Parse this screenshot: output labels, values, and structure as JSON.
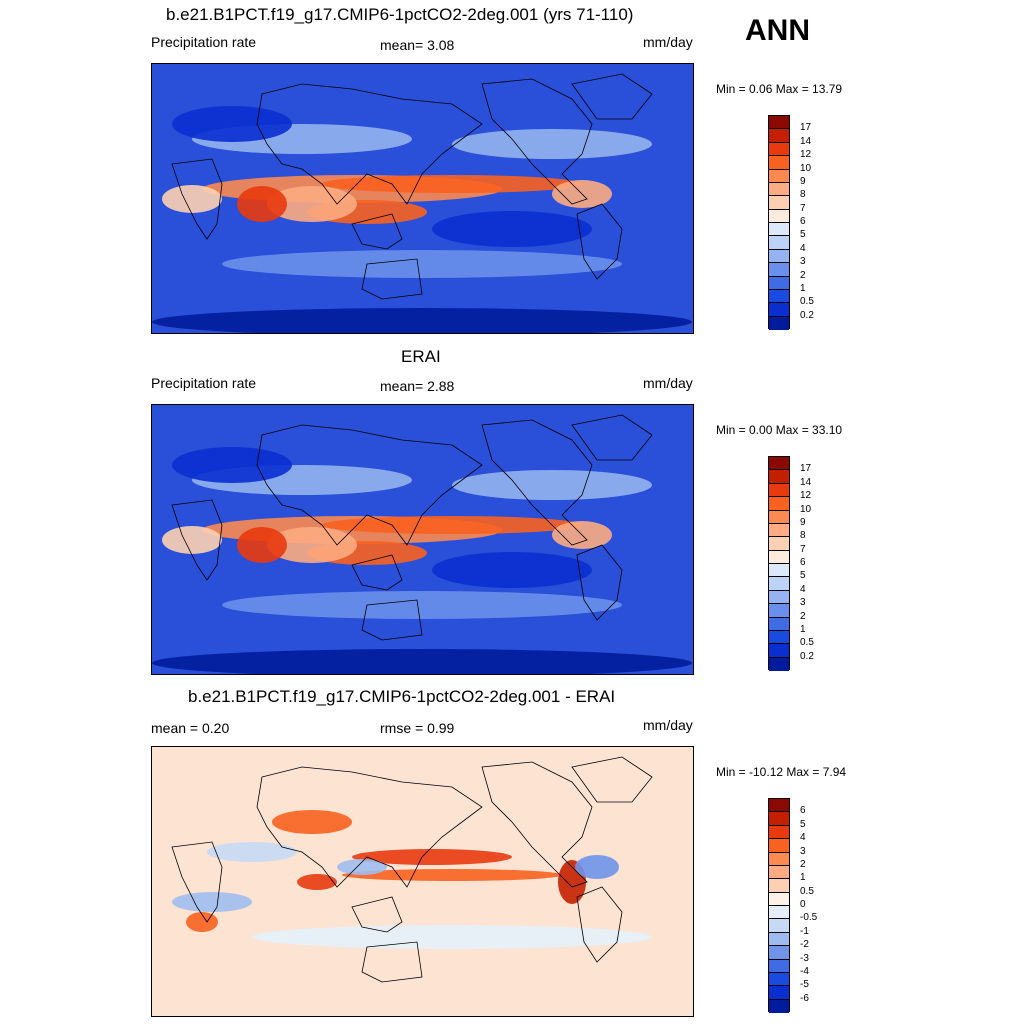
{
  "season": "ANN",
  "panels": [
    {
      "title": "b.e21.B1PCT.f19_g17.CMIP6-1pctCO2-2deg.001 (yrs 71-110)",
      "left_label": "Precipitation rate",
      "center_label": "mean=   3.08",
      "right_label": "mm/day",
      "minmax": "Min =   0.06 Max =  13.79",
      "background": "#2a4fd8",
      "colorbar": {
        "labels": [
          "17",
          "14",
          "12",
          "10",
          "9",
          "8",
          "7",
          "6",
          "5",
          "4",
          "3",
          "2",
          "1",
          "0.5",
          "0.2"
        ],
        "colors": [
          "#8b0a00",
          "#c42000",
          "#e83a0e",
          "#f8611f",
          "#fb8950",
          "#fcab82",
          "#fdd0b3",
          "#fdebdd",
          "#dde9fb",
          "#bcd2f7",
          "#94b3f0",
          "#6a90eb",
          "#3f6ce3",
          "#1a4be0",
          "#0a2fd0",
          "#001c9c"
        ]
      }
    },
    {
      "title": "ERAI",
      "left_label": "Precipitation rate",
      "center_label": "mean=   2.88",
      "right_label": "mm/day",
      "minmax": "Min =   0.00 Max =  33.10",
      "background": "#2a4fd8",
      "colorbar": {
        "labels": [
          "17",
          "14",
          "12",
          "10",
          "9",
          "8",
          "7",
          "6",
          "5",
          "4",
          "3",
          "2",
          "1",
          "0.5",
          "0.2"
        ],
        "colors": [
          "#8b0a00",
          "#c42000",
          "#e83a0e",
          "#f8611f",
          "#fb8950",
          "#fcab82",
          "#fdd0b3",
          "#fdebdd",
          "#dde9fb",
          "#bcd2f7",
          "#94b3f0",
          "#6a90eb",
          "#3f6ce3",
          "#1a4be0",
          "#0a2fd0",
          "#001c9c"
        ]
      }
    },
    {
      "title": "b.e21.B1PCT.f19_g17.CMIP6-1pctCO2-2deg.001 - ERAI",
      "left_label": "mean =   0.20",
      "center_label": "rmse =   0.99",
      "right_label": "mm/day",
      "minmax": "Min = -10.12 Max =   7.94",
      "background": "#fde3d2",
      "colorbar": {
        "labels": [
          "6",
          "5",
          "4",
          "3",
          "2",
          "1",
          "0.5",
          "0",
          "-0.5",
          "-1",
          "-2",
          "-3",
          "-4",
          "-5",
          "-6"
        ],
        "colors": [
          "#8b0a00",
          "#c42000",
          "#e83a0e",
          "#f8611f",
          "#fb8950",
          "#fcab82",
          "#fdd0b3",
          "#fef1e8",
          "#e4effb",
          "#c6d9f5",
          "#9fbcf0",
          "#6f94ea",
          "#3f6ce3",
          "#1a4be0",
          "#0a2fd0",
          "#001c9c"
        ]
      }
    }
  ]
}
